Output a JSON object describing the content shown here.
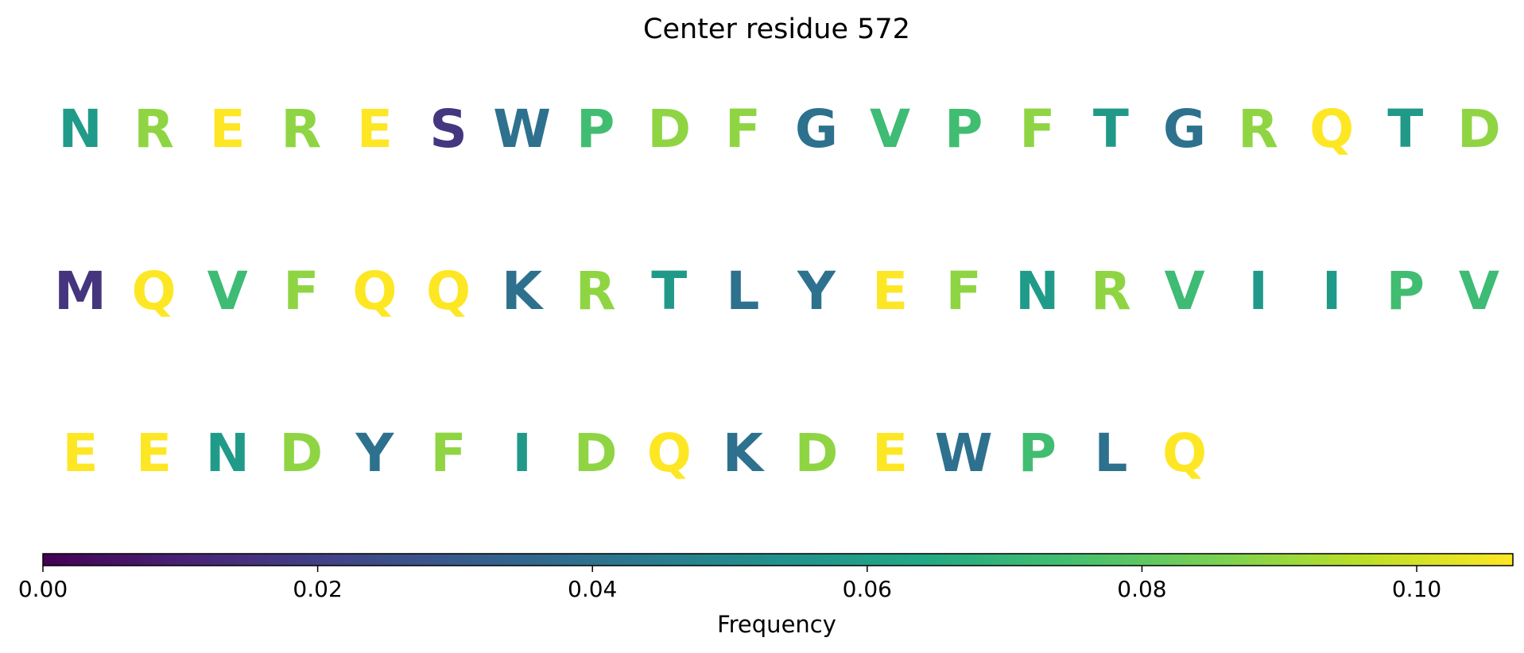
{
  "chart_data": {
    "type": "heatmap",
    "title": "Center residue 572",
    "colormap": "viridis",
    "residues": [
      {
        "letter": "N",
        "value": 0.058
      },
      {
        "letter": "R",
        "value": 0.089
      },
      {
        "letter": "E",
        "value": 0.107
      },
      {
        "letter": "R",
        "value": 0.089
      },
      {
        "letter": "E",
        "value": 0.107
      },
      {
        "letter": "S",
        "value": 0.017
      },
      {
        "letter": "W",
        "value": 0.04
      },
      {
        "letter": "P",
        "value": 0.074
      },
      {
        "letter": "D",
        "value": 0.089
      },
      {
        "letter": "F",
        "value": 0.089
      },
      {
        "letter": "G",
        "value": 0.04
      },
      {
        "letter": "V",
        "value": 0.073
      },
      {
        "letter": "P",
        "value": 0.074
      },
      {
        "letter": "F",
        "value": 0.089
      },
      {
        "letter": "T",
        "value": 0.057
      },
      {
        "letter": "G",
        "value": 0.04
      },
      {
        "letter": "R",
        "value": 0.089
      },
      {
        "letter": "Q",
        "value": 0.107
      },
      {
        "letter": "T",
        "value": 0.057
      },
      {
        "letter": "D",
        "value": 0.089
      },
      {
        "letter": "M",
        "value": 0.016
      },
      {
        "letter": "Q",
        "value": 0.107
      },
      {
        "letter": "V",
        "value": 0.073
      },
      {
        "letter": "F",
        "value": 0.089
      },
      {
        "letter": "Q",
        "value": 0.107
      },
      {
        "letter": "Q",
        "value": 0.107
      },
      {
        "letter": "K",
        "value": 0.04
      },
      {
        "letter": "R",
        "value": 0.089
      },
      {
        "letter": "T",
        "value": 0.057
      },
      {
        "letter": "L",
        "value": 0.04
      },
      {
        "letter": "Y",
        "value": 0.04
      },
      {
        "letter": "E",
        "value": 0.107
      },
      {
        "letter": "F",
        "value": 0.089
      },
      {
        "letter": "N",
        "value": 0.058
      },
      {
        "letter": "R",
        "value": 0.089
      },
      {
        "letter": "V",
        "value": 0.073
      },
      {
        "letter": "I",
        "value": 0.057
      },
      {
        "letter": "I",
        "value": 0.057
      },
      {
        "letter": "P",
        "value": 0.074
      },
      {
        "letter": "V",
        "value": 0.073
      },
      {
        "letter": "E",
        "value": 0.107
      },
      {
        "letter": "E",
        "value": 0.107
      },
      {
        "letter": "N",
        "value": 0.058
      },
      {
        "letter": "D",
        "value": 0.089
      },
      {
        "letter": "Y",
        "value": 0.04
      },
      {
        "letter": "F",
        "value": 0.089
      },
      {
        "letter": "I",
        "value": 0.057
      },
      {
        "letter": "D",
        "value": 0.089
      },
      {
        "letter": "Q",
        "value": 0.107
      },
      {
        "letter": "K",
        "value": 0.04
      },
      {
        "letter": "D",
        "value": 0.089
      },
      {
        "letter": "E",
        "value": 0.107
      },
      {
        "letter": "W",
        "value": 0.04
      },
      {
        "letter": "P",
        "value": 0.074
      },
      {
        "letter": "L",
        "value": 0.04
      },
      {
        "letter": "Q",
        "value": 0.107
      }
    ],
    "colorbar": {
      "label": "Frequency",
      "range": [
        0,
        0.107
      ],
      "ticks": [
        0.0,
        0.02,
        0.04,
        0.06,
        0.08,
        0.1
      ],
      "tick_labels": [
        "0.00",
        "0.02",
        "0.04",
        "0.06",
        "0.08",
        "0.10"
      ],
      "orientation": "horizontal",
      "placement": "bottom"
    }
  }
}
